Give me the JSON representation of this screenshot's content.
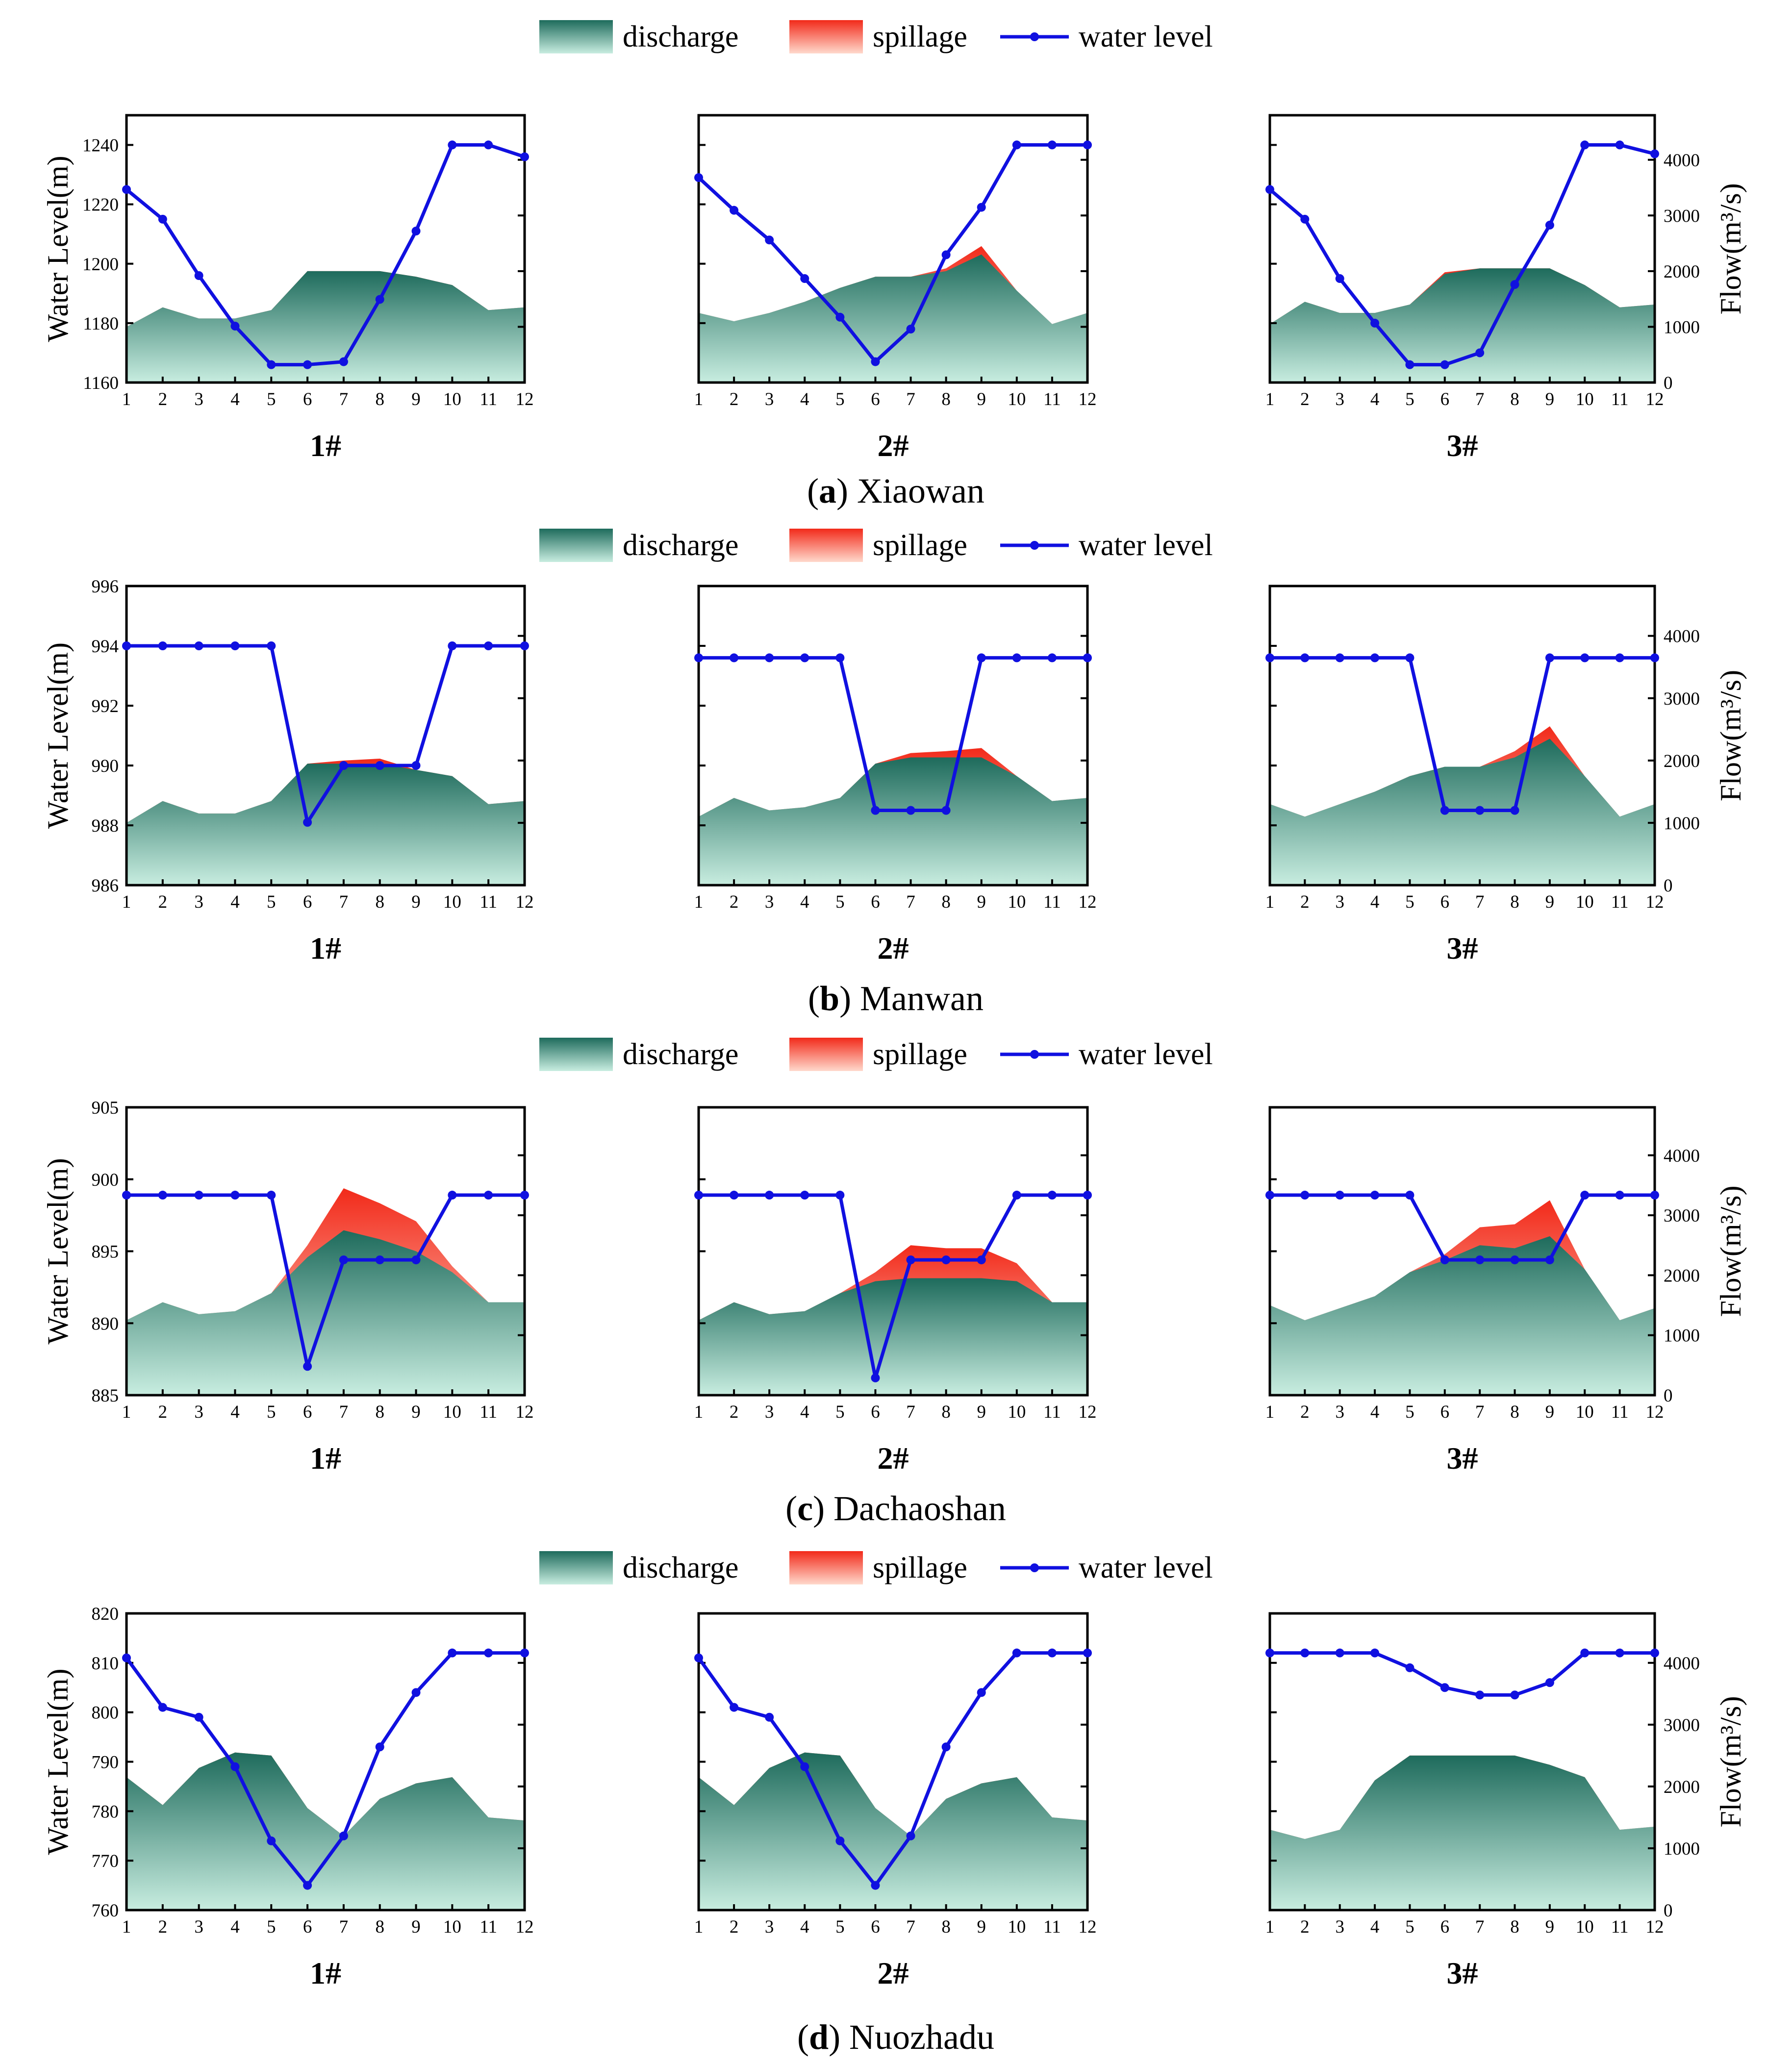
{
  "legend": {
    "discharge": "discharge",
    "spillage": "spillage",
    "water_level": "water level"
  },
  "colors": {
    "discharge_top": "#1e6b5c",
    "discharge_bottom": "#c8ede0",
    "spillage_top": "#f22a1a",
    "spillage_bottom": "#ffd9cc",
    "water_level": "#1010e0"
  },
  "axis_labels": {
    "left": "Water Level(m)",
    "right": "Flow(m³/s)"
  },
  "x_ticks": [
    "1",
    "2",
    "3",
    "4",
    "5",
    "6",
    "7",
    "8",
    "9",
    "10",
    "11",
    "12"
  ],
  "flow_ticks": [
    "0",
    "1000",
    "2000",
    "3000",
    "4000"
  ],
  "chart_data": [
    {
      "type": "area",
      "caption_letter": "a",
      "caption_name": "Xiaowan",
      "ylim": [
        1160,
        1250
      ],
      "yticks": [
        "1160",
        "1180",
        "1200",
        "1220",
        "1240"
      ],
      "flow_ylim": [
        0,
        4800
      ],
      "panels": [
        {
          "label": "1#",
          "water_level": [
            1225,
            1215,
            1196,
            1179,
            1166,
            1166,
            1167,
            1188,
            1211,
            1240,
            1240,
            1236
          ],
          "discharge": [
            1000,
            1350,
            1150,
            1150,
            1300,
            2000,
            2000,
            2000,
            1900,
            1750,
            1300,
            1350
          ],
          "spillage": [
            0,
            0,
            0,
            0,
            0,
            0,
            0,
            0,
            0,
            0,
            0,
            0
          ]
        },
        {
          "label": "2#",
          "water_level": [
            1229,
            1218,
            1208,
            1195,
            1182,
            1167,
            1178,
            1203,
            1219,
            1240,
            1240,
            1240
          ],
          "discharge": [
            1250,
            1100,
            1250,
            1450,
            1700,
            1900,
            1900,
            2000,
            2300,
            1650,
            1050,
            1250
          ],
          "spillage": [
            0,
            0,
            0,
            0,
            0,
            0,
            0,
            50,
            150,
            0,
            0,
            0
          ]
        },
        {
          "label": "3#",
          "water_level": [
            1225,
            1215,
            1195,
            1180,
            1166,
            1166,
            1170,
            1193,
            1213,
            1240,
            1240,
            1237
          ],
          "discharge": [
            1050,
            1450,
            1250,
            1250,
            1400,
            1950,
            2050,
            2050,
            2050,
            1750,
            1350,
            1400
          ],
          "spillage": [
            0,
            0,
            0,
            0,
            0,
            30,
            0,
            0,
            0,
            0,
            0,
            0
          ]
        }
      ]
    },
    {
      "type": "area",
      "caption_letter": "b",
      "caption_name": "Manwan",
      "ylim": [
        986,
        996
      ],
      "yticks": [
        "986",
        "988",
        "990",
        "992",
        "994",
        "996"
      ],
      "flow_ylim": [
        0,
        4800
      ],
      "panels": [
        {
          "label": "1#",
          "water_level": [
            994,
            994,
            994,
            994,
            994,
            988.1,
            990,
            990,
            990,
            994,
            994,
            994
          ],
          "discharge": [
            1000,
            1350,
            1150,
            1150,
            1350,
            1950,
            1950,
            1950,
            1850,
            1750,
            1300,
            1350
          ],
          "spillage": [
            0,
            0,
            0,
            0,
            0,
            0,
            50,
            80,
            0,
            0,
            0,
            0
          ]
        },
        {
          "label": "2#",
          "water_level": [
            993.6,
            993.6,
            993.6,
            993.6,
            993.6,
            988.5,
            988.5,
            988.5,
            993.6,
            993.6,
            993.6,
            993.6
          ],
          "discharge": [
            1100,
            1400,
            1200,
            1250,
            1400,
            1950,
            2050,
            2050,
            2050,
            1750,
            1350,
            1400
          ],
          "spillage": [
            0,
            0,
            0,
            0,
            0,
            0,
            70,
            100,
            150,
            0,
            0,
            0
          ]
        },
        {
          "label": "3#",
          "water_level": [
            993.6,
            993.6,
            993.6,
            993.6,
            993.6,
            988.5,
            988.5,
            988.5,
            993.6,
            993.6,
            993.6,
            993.6
          ],
          "discharge": [
            1300,
            1100,
            1300,
            1500,
            1750,
            1900,
            1900,
            2050,
            2350,
            1750,
            1100,
            1300
          ],
          "spillage": [
            0,
            0,
            0,
            0,
            0,
            0,
            0,
            100,
            200,
            0,
            0,
            0
          ]
        }
      ]
    },
    {
      "type": "area",
      "caption_letter": "c",
      "caption_name": "Dachaoshan",
      "ylim": [
        885,
        905
      ],
      "yticks": [
        "885",
        "890",
        "895",
        "900",
        "905"
      ],
      "flow_ylim": [
        0,
        4800
      ],
      "panels": [
        {
          "label": "1#",
          "water_level": [
            898.9,
            898.9,
            898.9,
            898.9,
            898.9,
            887,
            894.4,
            894.4,
            894.4,
            898.9,
            898.9,
            898.9
          ],
          "discharge": [
            1250,
            1550,
            1350,
            1400,
            1700,
            2300,
            2750,
            2600,
            2400,
            2050,
            1550,
            1550
          ],
          "spillage": [
            0,
            0,
            0,
            0,
            0,
            200,
            700,
            600,
            500,
            100,
            0,
            0
          ]
        },
        {
          "label": "2#",
          "water_level": [
            898.9,
            898.9,
            898.9,
            898.9,
            898.9,
            886.2,
            894.4,
            894.4,
            894.4,
            898.9,
            898.9,
            898.9
          ],
          "discharge": [
            1250,
            1550,
            1350,
            1400,
            1700,
            1900,
            1950,
            1950,
            1950,
            1900,
            1550,
            1550
          ],
          "spillage": [
            0,
            0,
            0,
            0,
            0,
            150,
            550,
            500,
            500,
            300,
            0,
            0
          ]
        },
        {
          "label": "3#",
          "water_level": [
            898.9,
            898.9,
            898.9,
            898.9,
            898.9,
            894.4,
            894.4,
            894.4,
            894.4,
            898.9,
            898.9,
            898.9
          ],
          "discharge": [
            1500,
            1250,
            1450,
            1650,
            2050,
            2250,
            2500,
            2450,
            2650,
            2100,
            1250,
            1450
          ],
          "spillage": [
            0,
            0,
            0,
            0,
            0,
            100,
            300,
            400,
            600,
            0,
            0,
            0
          ]
        }
      ]
    },
    {
      "type": "area",
      "caption_letter": "d",
      "caption_name": "Nuozhadu",
      "ylim": [
        760,
        820
      ],
      "yticks": [
        "760",
        "770",
        "780",
        "790",
        "800",
        "810",
        "820"
      ],
      "flow_ylim": [
        0,
        4800
      ],
      "panels": [
        {
          "label": "1#",
          "water_level": [
            811,
            801,
            799,
            789,
            774,
            765,
            775,
            793,
            804,
            812,
            812,
            812
          ],
          "discharge": [
            2150,
            1700,
            2300,
            2550,
            2500,
            1650,
            1200,
            1800,
            2050,
            2150,
            1500,
            1450
          ],
          "spillage": [
            0,
            0,
            0,
            0,
            0,
            0,
            0,
            0,
            0,
            0,
            0,
            0
          ]
        },
        {
          "label": "2#",
          "water_level": [
            811,
            801,
            799,
            789,
            774,
            765,
            775,
            793,
            804,
            812,
            812,
            812
          ],
          "discharge": [
            2150,
            1700,
            2300,
            2550,
            2500,
            1650,
            1200,
            1800,
            2050,
            2150,
            1500,
            1450
          ],
          "spillage": [
            0,
            0,
            0,
            0,
            0,
            0,
            0,
            0,
            0,
            0,
            0,
            0
          ]
        },
        {
          "label": "3#",
          "water_level": [
            812,
            812,
            812,
            812,
            809,
            805,
            803.5,
            803.5,
            806,
            812,
            812,
            812
          ],
          "discharge": [
            1300,
            1150,
            1300,
            2100,
            2500,
            2500,
            2500,
            2500,
            2350,
            2150,
            1300,
            1350
          ],
          "spillage": [
            0,
            0,
            0,
            0,
            0,
            0,
            0,
            0,
            0,
            0,
            0,
            0
          ]
        }
      ]
    }
  ]
}
